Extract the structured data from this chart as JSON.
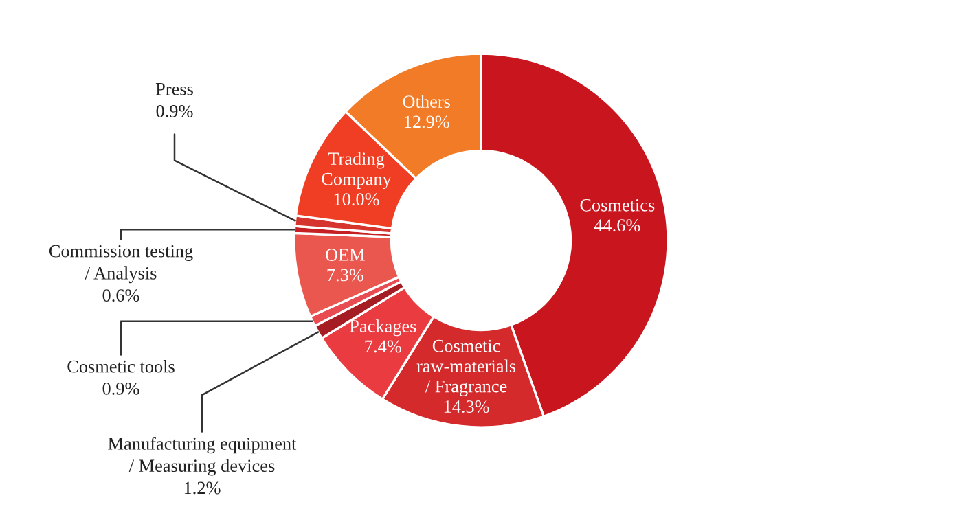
{
  "chart_data": {
    "type": "donut",
    "categories": [
      "Cosmetics",
      "Cosmetic\nraw-materials\n/ Fragrance",
      "Packages",
      "Manufacturing equipment\n/ Measuring devices",
      "Cosmetic tools",
      "OEM",
      "Commission testing\n/ Analysis",
      "Press",
      "Trading\nCompany",
      "Others"
    ],
    "values": [
      44.6,
      14.3,
      7.4,
      1.2,
      0.9,
      7.3,
      0.6,
      0.9,
      10.0,
      12.9
    ],
    "value_labels": [
      "44.6%",
      "14.3%",
      "7.4%",
      "1.2%",
      "0.9%",
      "7.3%",
      "0.6%",
      "0.9%",
      "10.0%",
      "12.9%"
    ],
    "colors": [
      "#c9161e",
      "#d42a2c",
      "#ea3c40",
      "#a51d22",
      "#e84c52",
      "#e9574f",
      "#c52125",
      "#d6342f",
      "#ef3e24",
      "#f27b27"
    ]
  }
}
